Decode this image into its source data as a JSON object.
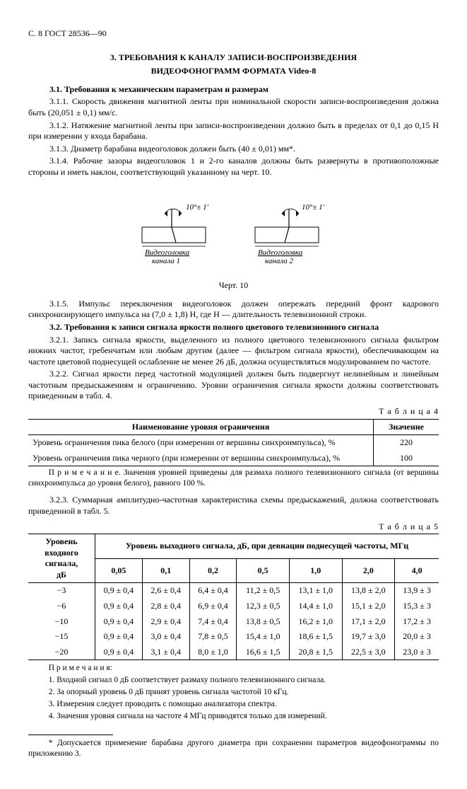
{
  "header": "С. 8 ГОСТ 28536—90",
  "title_line1": "3.  ТРЕБОВАНИЯ К КАНАЛУ ЗАПИСИ-ВОСПРОИЗВЕДЕНИЯ",
  "title_line2": "ВИДЕОФОНОГРАММ ФОРМАТА Video-8",
  "p31_lead": "3.1. Требования к механическим параметрам и размерам",
  "p311": "3.1.1. Скорость движения магнитной ленты при номинальной скорости записи-воспроизведения должна быть (20,051 ± 0,1) мм/с.",
  "p312": "3.1.2. Натяжение магнитной ленты при записи-воспроизведении должно быть в пределах от 0,1 до 0,15 Н при измерении у входа барабана.",
  "p313": "3.1.3. Диаметр барабана видеоголовок должен быть (40 ± 0,01) мм*.",
  "p314": "3.1.4. Рабочие зазоры видеоголовок 1 и 2-го каналов должны быть развернуты в противоположные стороны и иметь наклон, соответствующий указанному на черт. 10.",
  "fig": {
    "angle": "10°± 1′",
    "label1": "Видеоголовка",
    "label1b": "канала 1",
    "label2": "Видеоголовка",
    "label2b": "канала 2",
    "caption": "Черт. 10"
  },
  "p315": "3.1.5. Импульс переключения видеоголовок должен опережать передний фронт кадрового синхронизирующего импульса на (7,0 ± 1,8) H, где H — длительность телевизионной строки.",
  "p32_lead": "3.2. Требования к записи сигнала яркости полного цветового телевизионного сигнала",
  "p321": "3.2.1. Запись сигнала яркости, выделенного из полного цветового телевизионного сигнала фильтром нижних частот, гребенчатым или любым другим (далее — фильтром сигнала яркости), обеспечивающим на частоте цветовой поднесущей ослабление не менее 26 дБ, должна осуществляться модулированием по частоте.",
  "p322": "3.2.2. Сигнал яркости перед частотной модуляцией должен быть подвергнут нелинейным и линейным частотным предыскажениям и ограничению. Уровни ограничения сигнала яркости должны соответствовать приведенным в табл. 4.",
  "t4label": "Т а б л и ц а  4",
  "t4": {
    "h1": "Наименование уровня ограничения",
    "h2": "Значение",
    "r1": "Уровень ограничения пика белого (при измерении от вершины синхроимпульса), %",
    "v1": "220",
    "r2": "Уровень ограничения пика черного (при измерении от вершины синхроимпульса), %",
    "v2": "100"
  },
  "t4note": "П р и м е ч а н и е.  Значения уровней приведены для размаха полного телевизионного сигнала (от вершины синхроимпульса до уровня белого), равного 100 %.",
  "p323": "3.2.3. Суммарная амплитудно-частотная характеристика схемы предыскажений, должна соответствовать приведенной в табл. 5.",
  "t5label": "Т а б л и ц а  5",
  "t5": {
    "colhead_left_l1": "Уровень",
    "colhead_left_l2": "входного сигнала,",
    "colhead_left_l3": "дБ",
    "super_head": "Уровень выходного сигнала, дБ, при девиации поднесущей частоты, МГц",
    "freqs": [
      "0,05",
      "0,1",
      "0,2",
      "0,5",
      "1,0",
      "2,0",
      "4,0"
    ],
    "rows": [
      {
        "lvl": "−3",
        "vals": [
          "0,9 ± 0,4",
          "2,6 ± 0,4",
          "6,4 ± 0,4",
          "11,2 ± 0,5",
          "13,1 ± 1,0",
          "13,8 ± 2,0",
          "13,9 ± 3"
        ]
      },
      {
        "lvl": "−6",
        "vals": [
          "0,9 ± 0,4",
          "2,8 ± 0,4",
          "6,9 ± 0,4",
          "12,3 ± 0,5",
          "14,4 ± 1,0",
          "15,1 ± 2,0",
          "15,3 ± 3"
        ]
      },
      {
        "lvl": "−10",
        "vals": [
          "0,9 ± 0,4",
          "2,9 ± 0,4",
          "7,4 ± 0,4",
          "13,8 ± 0,5",
          "16,2 ± 1,0",
          "17,1 ± 2,0",
          "17,2 ± 3"
        ]
      },
      {
        "lvl": "−15",
        "vals": [
          "0,9 ± 0,4",
          "3,0 ± 0,4",
          "7,8 ± 0,5",
          "15,4 ± 1,0",
          "18,6 ± 1,5",
          "19,7 ± 3,0",
          "20,0 ± 3"
        ]
      },
      {
        "lvl": "−20",
        "vals": [
          "0,9 ± 0,4",
          "3,1 ± 0,4",
          "8,0 ± 1,0",
          "16,6 ± 1,5",
          "20,8 ± 1,5",
          "22,5 ± 3,0",
          "23,0 ± 3"
        ]
      }
    ]
  },
  "t5notes_head": "П р и м е ч а н и я:",
  "t5n1": "1. Входной сигнал 0 дБ соответствует размаху полного телевизионного сигнала.",
  "t5n2": "2. За опорный уровень 0 дБ принят уровень сигнала частотой 10 кГц.",
  "t5n3": "3. Измерения следует проводить с помощью анализатора спектра.",
  "t5n4": "4. Значения уровня сигнала на частоте 4 МГц приводятся только для измерений.",
  "footnote": "* Допускается применение барабана другого диаметра при сохранении параметров видеофонограммы по приложению 3."
}
